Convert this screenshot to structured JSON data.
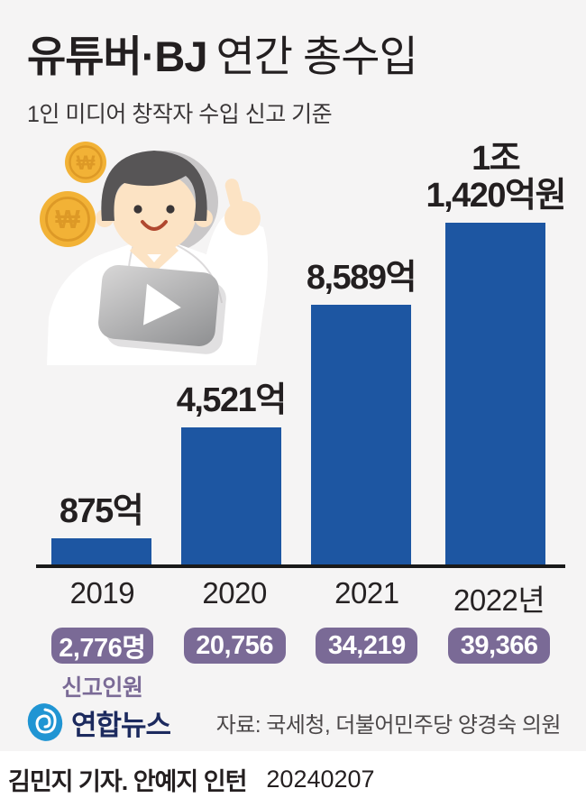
{
  "header": {
    "title_bold": "유튜버·BJ",
    "title_rest": "연간 총수입",
    "subtitle": "1인 미디어 창작자 수입 신고 기준"
  },
  "illustration": {
    "coin_symbol": "₩",
    "colors": {
      "coin": "#f2b236",
      "coin_dark": "#dd9926",
      "hair": "#575556",
      "skin": "#fce3c4",
      "shirt": "#ffffff",
      "play_light": "#d6d5d5",
      "play_dark": "#8e8f91",
      "shadow": "#c9c7c8"
    }
  },
  "chart_data": {
    "type": "bar",
    "title": "유튜버·BJ 연간 총수입",
    "categories": [
      "2019",
      "2020",
      "2021",
      "2022년"
    ],
    "values": [
      875,
      4521,
      8589,
      11420
    ],
    "unit": "억원",
    "bar_labels": [
      [
        "875억"
      ],
      [
        "4,521억"
      ],
      [
        "8,589억"
      ],
      [
        "1조",
        "1,420억원"
      ]
    ],
    "reporter_counts": [
      "2,776명",
      "20,756",
      "34,219",
      "39,366"
    ],
    "reporter_label": "신고인원",
    "bar_color": "#1d56a2",
    "badge_color": "#7a6a96",
    "axis_color": "#1a1a1a",
    "ylim": [
      0,
      11420
    ],
    "grid": false,
    "legend": false
  },
  "footer": {
    "logo_text": "연합뉴스",
    "source": "자료: 국세청, 더불어민주당 양경숙 의원",
    "credit": "김민지 기자. 안예지 인턴",
    "date": "20240207"
  }
}
